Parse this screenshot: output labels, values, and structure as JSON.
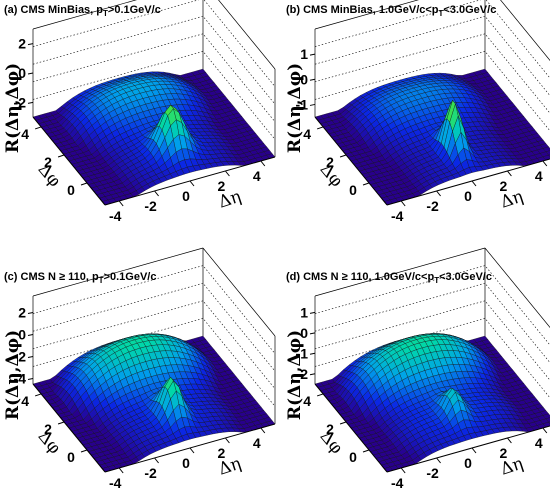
{
  "chart_data": [
    {
      "type": "surface",
      "title_prefix": "(a) CMS MinBias, p",
      "title_sub": "T",
      "title_suffix": ">0.1GeV/c",
      "zlabel": "R(Δη,Δφ)",
      "xlabel": "Δη",
      "ylabel": "Δφ",
      "eta_ticks": [
        "-4",
        "-2",
        "0",
        "2",
        "4"
      ],
      "phi_ticks": [
        "0",
        "2",
        "4"
      ],
      "z_ticks": [
        "-2",
        "0",
        "2"
      ],
      "eta_range": [
        -4.8,
        4.8
      ],
      "phi_range": [
        -1.57,
        4.71
      ],
      "z_range": [
        -3.0,
        3.0
      ],
      "surface": {
        "peak": 2.9,
        "peak_width": 0.6,
        "near_ridge": 0.2,
        "away": 1.4,
        "base": -2.5
      }
    },
    {
      "type": "surface",
      "title_prefix": "(b) CMS MinBias, 1.0GeV/c<p",
      "title_sub": "T",
      "title_suffix": "<3.0GeV/c",
      "zlabel": "R(Δη,Δφ)",
      "xlabel": "Δη",
      "ylabel": "Δφ",
      "eta_ticks": [
        "-4",
        "-2",
        "0",
        "2",
        "4"
      ],
      "phi_ticks": [
        "0",
        "2",
        "4"
      ],
      "z_ticks": [
        "-1",
        "0",
        "1"
      ],
      "eta_range": [
        -4.8,
        4.8
      ],
      "phi_range": [
        -1.57,
        4.71
      ],
      "z_range": [
        -1.5,
        2.0
      ],
      "surface": {
        "peak": 2.0,
        "peak_width": 0.35,
        "near_ridge": 0.0,
        "away": 0.6,
        "base": -1.2
      }
    },
    {
      "type": "surface",
      "title_prefix": "(c) CMS N ≥ 110, p",
      "title_sub": "T",
      "title_suffix": ">0.1GeV/c",
      "zlabel": "R(Δη,Δφ)",
      "xlabel": "Δη",
      "ylabel": "Δφ",
      "eta_ticks": [
        "-4",
        "-2",
        "0",
        "2",
        "4"
      ],
      "phi_ticks": [
        "0",
        "2",
        "4"
      ],
      "z_ticks": [
        "-4",
        "-2",
        "0",
        "2"
      ],
      "eta_range": [
        -4.8,
        4.8
      ],
      "phi_range": [
        -1.57,
        4.71
      ],
      "z_range": [
        -4.5,
        3.5
      ],
      "surface": {
        "peak": 3.3,
        "peak_width": 0.45,
        "near_ridge": 0.3,
        "away": 3.0,
        "base": -3.8
      }
    },
    {
      "type": "surface",
      "title_prefix": "(d) CMS N ≥ 110, 1.0GeV/c<p",
      "title_sub": "T",
      "title_suffix": "<3.0GeV/c",
      "zlabel": "R(Δη,Δφ)",
      "xlabel": "Δη",
      "ylabel": "Δφ",
      "eta_ticks": [
        "-4",
        "-2",
        "0",
        "2",
        "4"
      ],
      "phi_ticks": [
        "0",
        "2",
        "4"
      ],
      "z_ticks": [
        "-2",
        "-1",
        "0",
        "1"
      ],
      "eta_range": [
        -4.8,
        4.8
      ],
      "phi_range": [
        -1.57,
        4.71
      ],
      "z_range": [
        -2.5,
        1.8
      ],
      "surface": {
        "peak": 1.1,
        "peak_width": 0.4,
        "near_ridge": 0.25,
        "away": 1.6,
        "base": -2.1
      }
    }
  ]
}
